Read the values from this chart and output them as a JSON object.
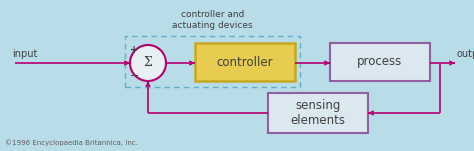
{
  "background_color": "#b8dce8",
  "arrow_color": "#b5006e",
  "controller_box_border": "#c8a820",
  "controller_box_fill": "#e8cc50",
  "process_box_border": "#9060a0",
  "process_box_fill": "#dce8f0",
  "sensing_box_border": "#9060a0",
  "sensing_box_fill": "#dce8f0",
  "dashed_rect_color": "#60b0c8",
  "circle_border": "#b5006e",
  "circle_fill": "#e8f0f4",
  "text_color": "#404040",
  "copyright_color": "#606060",
  "title": "controller and\nactuating devices",
  "input_label": "input",
  "output_label": "output",
  "controller_label": "controller",
  "process_label": "process",
  "sensing_label": "sensing\nelements",
  "sum_label": "Σ",
  "plus_label": "+",
  "minus_label": "−",
  "copyright_label": "©1996 Encyclopaedia Britannica, Inc.",
  "figsize": [
    4.74,
    1.51
  ],
  "dpi": 100
}
